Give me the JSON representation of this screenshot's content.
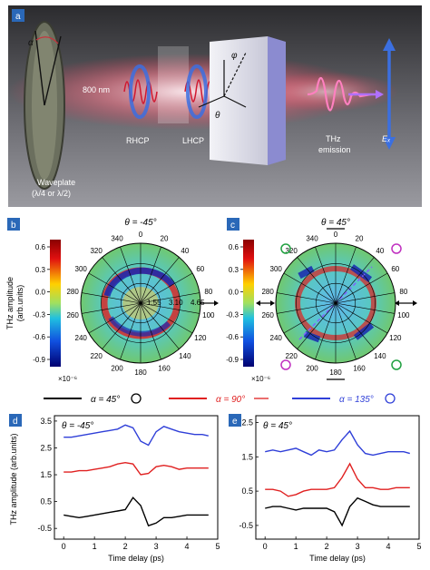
{
  "panels": {
    "a": {
      "label": "a",
      "waveplate_label": "Waveplate",
      "waveplate_sub": "(λ/4 or λ/2)",
      "wavelength_label": "800 nm",
      "rhcp_label": "RHCP",
      "lhcp_label": "LHCP",
      "thz_label": "THz",
      "emission_label": "emission",
      "alpha_symbol": "α",
      "phi_symbol": "φ",
      "theta_symbol": "θ",
      "field_symbol": "Eₓ"
    },
    "b": {
      "label": "b",
      "title": "θ = -45°",
      "angle_labels": [
        "0",
        "20",
        "40",
        "60",
        "80",
        "100",
        "120",
        "140",
        "160",
        "180",
        "200",
        "220",
        "240",
        "260",
        "280",
        "300",
        "320",
        "340"
      ],
      "radial_labels": [
        "1.55",
        "3.10",
        "4.65"
      ],
      "colorbar_ticks": [
        "0.6",
        "0.3",
        "0.0",
        "-0.3",
        "-0.6",
        "-0.9"
      ],
      "colorbar_title": "THz amplitude",
      "colorbar_unit": "(arb.units)",
      "colorbar_scale": "×10⁻⁶"
    },
    "c": {
      "label": "c",
      "title": "θ = 45°",
      "angle_labels": [
        "0",
        "20",
        "40",
        "60",
        "80",
        "100",
        "120",
        "140",
        "160",
        "180",
        "200",
        "220",
        "240",
        "260",
        "280",
        "300",
        "320",
        "340"
      ],
      "colorbar_ticks": [
        "0.6",
        "0.3",
        "0.0",
        "-0.3",
        "-0.6",
        "-0.9"
      ],
      "colorbar_scale": "×10⁻⁶"
    },
    "legend": [
      {
        "text": "α = 45°",
        "color": "#000000",
        "symbol": "circular-arrow-icon"
      },
      {
        "text": "α = 90°",
        "color": "#e02020",
        "symbol": "double-arrow-icon"
      },
      {
        "text": "α = 135°",
        "color": "#2f3fd8",
        "symbol": "circular-arrow-icon"
      }
    ],
    "d": {
      "label": "d",
      "title": "θ = -45°"
    },
    "e": {
      "label": "e",
      "title": "θ = 45°"
    }
  },
  "colors": {
    "panel_label_bg": "#2a68b8",
    "black_series": "#000000",
    "red_series": "#e02020",
    "blue_series": "#2f3fd8"
  },
  "chart_data": [
    {
      "type": "line",
      "panel": "d",
      "title": "θ = -45°",
      "xlabel": "Time delay (ps)",
      "ylabel": "THz amplitude (arb.units)",
      "xlim": [
        -0.3,
        5
      ],
      "ylim": [
        -0.9,
        3.7
      ],
      "xticks": [
        0,
        1,
        2,
        3,
        4,
        5
      ],
      "yticks": [
        -0.5,
        0.5,
        1.5,
        2.5,
        3.5
      ],
      "x": [
        0,
        0.25,
        0.5,
        0.75,
        1,
        1.25,
        1.5,
        1.75,
        2,
        2.25,
        2.5,
        2.75,
        3,
        3.25,
        3.5,
        3.75,
        4,
        4.25,
        4.5,
        4.7
      ],
      "series": [
        {
          "color": "#000000",
          "values": [
            0.0,
            -0.05,
            -0.1,
            -0.05,
            0,
            0.05,
            0.1,
            0.15,
            0.2,
            0.65,
            0.35,
            -0.4,
            -0.3,
            -0.1,
            -0.1,
            -0.05,
            0.0,
            0.0,
            0.0,
            0.0
          ]
        },
        {
          "color": "#e02020",
          "values": [
            1.6,
            1.6,
            1.65,
            1.65,
            1.7,
            1.75,
            1.8,
            1.9,
            1.95,
            1.9,
            1.5,
            1.55,
            1.8,
            1.85,
            1.8,
            1.7,
            1.75,
            1.75,
            1.75,
            1.75
          ]
        },
        {
          "color": "#2f3fd8",
          "values": [
            2.9,
            2.9,
            2.95,
            3.0,
            3.05,
            3.1,
            3.15,
            3.2,
            3.35,
            3.25,
            2.75,
            2.6,
            3.1,
            3.3,
            3.2,
            3.1,
            3.05,
            3.0,
            3.0,
            2.95
          ]
        }
      ]
    },
    {
      "type": "line",
      "panel": "e",
      "title": "θ = 45°",
      "xlabel": "Time delay (ps)",
      "xlim": [
        -0.3,
        5
      ],
      "ylim": [
        -0.9,
        2.7
      ],
      "xticks": [
        0,
        1,
        2,
        3,
        4,
        5
      ],
      "yticks": [
        -0.5,
        0.5,
        1.5,
        2.5
      ],
      "x": [
        0,
        0.25,
        0.5,
        0.75,
        1,
        1.25,
        1.5,
        1.75,
        2,
        2.25,
        2.5,
        2.75,
        3,
        3.25,
        3.5,
        3.75,
        4,
        4.25,
        4.5,
        4.7
      ],
      "series": [
        {
          "color": "#000000",
          "values": [
            0.0,
            0.05,
            0.05,
            0.0,
            -0.05,
            0.0,
            0.0,
            0.0,
            0.0,
            -0.1,
            -0.5,
            0.05,
            0.3,
            0.2,
            0.1,
            0.05,
            0.05,
            0.05,
            0.05,
            0.05
          ]
        },
        {
          "color": "#e02020",
          "values": [
            0.55,
            0.55,
            0.5,
            0.35,
            0.4,
            0.5,
            0.55,
            0.55,
            0.55,
            0.6,
            0.9,
            1.3,
            0.85,
            0.6,
            0.6,
            0.55,
            0.55,
            0.6,
            0.6,
            0.6
          ]
        },
        {
          "color": "#2f3fd8",
          "values": [
            1.65,
            1.7,
            1.65,
            1.7,
            1.75,
            1.65,
            1.55,
            1.7,
            1.65,
            1.7,
            2.0,
            2.25,
            1.85,
            1.6,
            1.55,
            1.6,
            1.65,
            1.65,
            1.65,
            1.6
          ]
        }
      ]
    }
  ]
}
